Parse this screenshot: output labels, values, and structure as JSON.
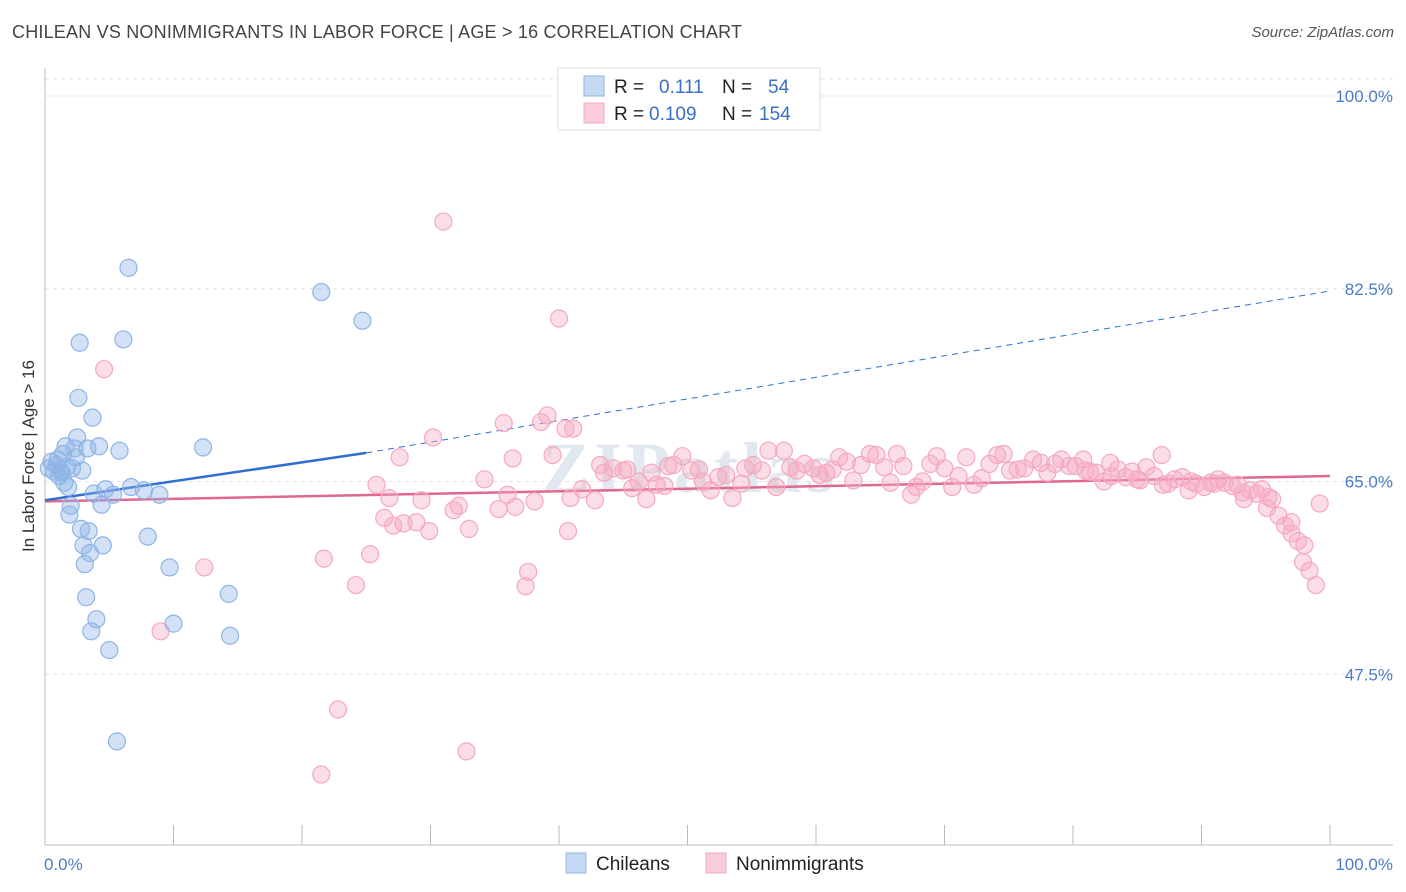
{
  "title": "CHILEAN VS NONIMMIGRANTS IN LABOR FORCE | AGE > 16 CORRELATION CHART",
  "source": "Source: ZipAtlas.com",
  "watermark": "ZIPatlas",
  "chart_data": {
    "type": "scatter",
    "ylabel": "In Labor Force | Age > 16",
    "xlim": [
      0,
      100
    ],
    "ylim": [
      32,
      102
    ],
    "x_tick_labels": [
      "0.0%",
      "100.0%"
    ],
    "y_ticks": [
      100.0,
      82.5,
      65.0,
      47.5
    ],
    "y_tick_labels": [
      "100.0%",
      "82.5%",
      "65.0%",
      "47.5%"
    ],
    "legend": {
      "rows": [
        {
          "r_label": "R =",
          "r_value": "0.111",
          "n_label": "N =",
          "n_value": "54"
        },
        {
          "r_label": "R =",
          "r_value": "0.109",
          "n_label": "N =",
          "n_value": "154"
        }
      ]
    },
    "series": [
      {
        "name": "Chileans",
        "color": "#8fb4e6",
        "line_color": "#2f6fd0",
        "trend": {
          "x0": 0,
          "y0": 63.3,
          "x1": 25,
          "y1": 67.6,
          "dash_x1": 100,
          "dash_y1": 82.3
        },
        "points": [
          [
            0.3,
            66.2
          ],
          [
            0.5,
            66.8
          ],
          [
            0.7,
            65.9
          ],
          [
            0.9,
            66.5
          ],
          [
            1.0,
            67.0
          ],
          [
            1.1,
            65.5
          ],
          [
            1.2,
            66.0
          ],
          [
            1.3,
            65.8
          ],
          [
            1.4,
            67.5
          ],
          [
            1.5,
            64.9
          ],
          [
            1.6,
            68.2
          ],
          [
            1.7,
            66.3
          ],
          [
            1.8,
            64.5
          ],
          [
            1.9,
            62.0
          ],
          [
            2.0,
            62.8
          ],
          [
            2.1,
            66.2
          ],
          [
            2.3,
            68.0
          ],
          [
            2.4,
            67.2
          ],
          [
            2.5,
            69.0
          ],
          [
            2.6,
            72.6
          ],
          [
            2.7,
            77.6
          ],
          [
            2.8,
            60.7
          ],
          [
            2.9,
            66.0
          ],
          [
            3.0,
            59.2
          ],
          [
            3.1,
            57.5
          ],
          [
            3.2,
            54.5
          ],
          [
            3.3,
            68.0
          ],
          [
            3.4,
            60.5
          ],
          [
            3.5,
            58.5
          ],
          [
            3.6,
            51.4
          ],
          [
            3.7,
            70.8
          ],
          [
            3.8,
            63.9
          ],
          [
            4.0,
            52.5
          ],
          [
            4.2,
            68.2
          ],
          [
            4.4,
            62.9
          ],
          [
            4.5,
            59.2
          ],
          [
            4.7,
            64.3
          ],
          [
            5.0,
            49.7
          ],
          [
            5.3,
            63.8
          ],
          [
            5.6,
            41.4
          ],
          [
            5.8,
            67.8
          ],
          [
            6.1,
            77.9
          ],
          [
            6.7,
            64.5
          ],
          [
            6.5,
            84.4
          ],
          [
            7.7,
            64.2
          ],
          [
            8.0,
            60.0
          ],
          [
            8.9,
            63.8
          ],
          [
            9.7,
            57.2
          ],
          [
            10.0,
            52.1
          ],
          [
            12.3,
            68.1
          ],
          [
            14.3,
            54.8
          ],
          [
            14.4,
            51.0
          ],
          [
            21.5,
            82.2
          ],
          [
            24.7,
            79.6
          ]
        ]
      },
      {
        "name": "Nonimmigrants",
        "color": "#f5a9c0",
        "line_color": "#e06890",
        "trend": {
          "x0": 0,
          "y0": 63.2,
          "x1": 100,
          "y1": 65.5
        },
        "points": [
          [
            4.6,
            75.2
          ],
          [
            9.0,
            51.4
          ],
          [
            12.4,
            57.2
          ],
          [
            21.5,
            38.4
          ],
          [
            21.7,
            58.0
          ],
          [
            22.8,
            44.3
          ],
          [
            24.2,
            55.6
          ],
          [
            25.3,
            58.4
          ],
          [
            25.8,
            64.7
          ],
          [
            26.4,
            61.7
          ],
          [
            26.8,
            63.5
          ],
          [
            27.1,
            61.0
          ],
          [
            27.6,
            67.2
          ],
          [
            27.9,
            61.2
          ],
          [
            28.9,
            61.3
          ],
          [
            29.3,
            63.3
          ],
          [
            29.9,
            60.5
          ],
          [
            30.2,
            69.0
          ],
          [
            31.0,
            88.6
          ],
          [
            31.8,
            62.4
          ],
          [
            32.2,
            62.8
          ],
          [
            32.8,
            40.5
          ],
          [
            33.0,
            60.7
          ],
          [
            34.2,
            65.2
          ],
          [
            35.3,
            62.5
          ],
          [
            35.7,
            70.3
          ],
          [
            36.0,
            63.8
          ],
          [
            36.4,
            67.1
          ],
          [
            36.6,
            62.7
          ],
          [
            37.4,
            55.5
          ],
          [
            37.6,
            56.8
          ],
          [
            38.1,
            63.2
          ],
          [
            38.6,
            70.4
          ],
          [
            39.1,
            71.0
          ],
          [
            39.5,
            67.4
          ],
          [
            40.0,
            79.8
          ],
          [
            40.5,
            69.8
          ],
          [
            40.7,
            60.5
          ],
          [
            40.9,
            63.5
          ],
          [
            41.1,
            69.8
          ],
          [
            41.8,
            64.3
          ],
          [
            42.8,
            63.3
          ],
          [
            43.2,
            66.5
          ],
          [
            43.5,
            65.8
          ],
          [
            44.2,
            66.2
          ],
          [
            45.0,
            66.0
          ],
          [
            45.3,
            66.1
          ],
          [
            45.7,
            64.4
          ],
          [
            46.2,
            65.0
          ],
          [
            46.8,
            63.4
          ],
          [
            47.2,
            65.8
          ],
          [
            47.6,
            64.7
          ],
          [
            48.2,
            64.6
          ],
          [
            48.5,
            66.4
          ],
          [
            48.9,
            66.5
          ],
          [
            49.6,
            67.3
          ],
          [
            50.3,
            66.0
          ],
          [
            50.9,
            66.1
          ],
          [
            51.2,
            65.0
          ],
          [
            51.8,
            64.2
          ],
          [
            52.4,
            65.4
          ],
          [
            53.0,
            65.6
          ],
          [
            53.5,
            63.5
          ],
          [
            54.2,
            64.8
          ],
          [
            54.5,
            66.2
          ],
          [
            55.1,
            66.5
          ],
          [
            55.8,
            66.0
          ],
          [
            56.3,
            67.8
          ],
          [
            56.9,
            64.5
          ],
          [
            57.5,
            67.8
          ],
          [
            58.0,
            66.3
          ],
          [
            58.5,
            66.0
          ],
          [
            59.1,
            66.6
          ],
          [
            59.8,
            66.2
          ],
          [
            60.3,
            65.6
          ],
          [
            60.8,
            65.8
          ],
          [
            61.3,
            66.1
          ],
          [
            61.8,
            67.2
          ],
          [
            62.4,
            66.8
          ],
          [
            62.9,
            65.1
          ],
          [
            63.5,
            66.5
          ],
          [
            64.2,
            67.5
          ],
          [
            64.7,
            67.4
          ],
          [
            65.3,
            66.3
          ],
          [
            65.8,
            64.9
          ],
          [
            66.3,
            67.5
          ],
          [
            66.8,
            66.4
          ],
          [
            67.4,
            63.8
          ],
          [
            67.8,
            64.5
          ],
          [
            68.3,
            65.0
          ],
          [
            68.9,
            66.6
          ],
          [
            69.4,
            67.3
          ],
          [
            70.0,
            66.2
          ],
          [
            70.6,
            64.5
          ],
          [
            71.1,
            65.5
          ],
          [
            71.7,
            67.2
          ],
          [
            72.3,
            64.7
          ],
          [
            72.9,
            65.3
          ],
          [
            73.5,
            66.6
          ],
          [
            74.1,
            67.4
          ],
          [
            74.6,
            67.5
          ],
          [
            75.1,
            66.0
          ],
          [
            75.7,
            66.1
          ],
          [
            76.2,
            66.2
          ],
          [
            76.9,
            67.0
          ],
          [
            77.5,
            66.7
          ],
          [
            78.0,
            65.8
          ],
          [
            78.6,
            66.6
          ],
          [
            79.1,
            67.0
          ],
          [
            79.7,
            66.4
          ],
          [
            80.2,
            66.4
          ],
          [
            80.8,
            67.0
          ],
          [
            81.3,
            65.9
          ],
          [
            81.8,
            65.8
          ],
          [
            82.4,
            65.0
          ],
          [
            82.9,
            66.7
          ],
          [
            83.5,
            66.1
          ],
          [
            84.1,
            65.4
          ],
          [
            84.6,
            65.9
          ],
          [
            85.2,
            65.1
          ],
          [
            85.7,
            66.3
          ],
          [
            86.3,
            65.5
          ],
          [
            86.9,
            67.4
          ],
          [
            87.4,
            64.8
          ],
          [
            87.9,
            65.2
          ],
          [
            88.5,
            65.4
          ],
          [
            89.0,
            64.2
          ],
          [
            89.6,
            64.8
          ],
          [
            90.2,
            64.5
          ],
          [
            90.7,
            64.9
          ],
          [
            91.3,
            65.2
          ],
          [
            91.8,
            64.9
          ],
          [
            92.4,
            64.6
          ],
          [
            92.8,
            64.7
          ],
          [
            93.3,
            63.4
          ],
          [
            93.8,
            64.2
          ],
          [
            94.3,
            63.9
          ],
          [
            94.7,
            64.3
          ],
          [
            95.1,
            62.6
          ],
          [
            95.5,
            63.4
          ],
          [
            96.0,
            61.9
          ],
          [
            96.5,
            61.0
          ],
          [
            97.0,
            60.3
          ],
          [
            97.5,
            59.6
          ],
          [
            97.9,
            57.7
          ],
          [
            98.4,
            56.9
          ],
          [
            98.9,
            55.6
          ],
          [
            99.2,
            63.0
          ],
          [
            97.0,
            61.3
          ],
          [
            98.0,
            59.2
          ],
          [
            95.2,
            63.6
          ],
          [
            93.2,
            64.0
          ],
          [
            91.0,
            64.8
          ],
          [
            89.2,
            65.0
          ],
          [
            87.0,
            64.7
          ],
          [
            85.0,
            65.2
          ],
          [
            83.0,
            65.5
          ],
          [
            81.0,
            66.0
          ]
        ]
      }
    ],
    "bottom_legend": [
      "Chileans",
      "Nonimmigrants"
    ]
  }
}
